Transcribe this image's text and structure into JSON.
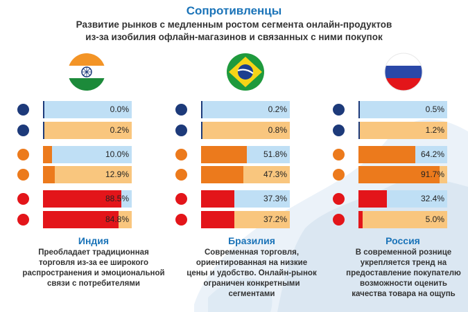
{
  "title": "Сопротивленцы",
  "subtitle_line1": "Развитие рынков с медленным ростом сегмента онлайн-продуктов",
  "subtitle_line2": "из-за изобилия офлайн-магазинов и связанных с ними покупок",
  "colors": {
    "dark_blue": "#1d3a7a",
    "orange": "#ec7a1c",
    "red": "#e3151a",
    "light_blue_bg": "#bfdff5",
    "light_orange_bg": "#f9c67e",
    "title_blue": "#1a73b8"
  },
  "chart_data": {
    "type": "bar",
    "orientation": "horizontal",
    "title": "Сопротивленцы",
    "unit": "%",
    "xlim": [
      0,
      100
    ],
    "rows": [
      {
        "group": "dark_blue",
        "value_color": "dark_blue",
        "bg_color": "light_blue_bg"
      },
      {
        "group": "dark_blue",
        "value_color": "dark_blue",
        "bg_color": "light_orange_bg"
      },
      {
        "group": "orange",
        "value_color": "orange",
        "bg_color": "light_blue_bg"
      },
      {
        "group": "orange",
        "value_color": "orange",
        "bg_color": "light_orange_bg"
      },
      {
        "group": "red",
        "value_color": "red",
        "bg_color": "light_blue_bg"
      },
      {
        "group": "red",
        "value_color": "red",
        "bg_color": "light_orange_bg"
      }
    ],
    "countries": [
      {
        "name": "Индия",
        "flag": "india-flag",
        "values": [
          0.0,
          0.2,
          10.0,
          12.9,
          88.5,
          84.8
        ],
        "labels": [
          "0.0%",
          "0.2%",
          "10.0%",
          "12.9%",
          "88.5%",
          "84.8%"
        ],
        "description": [
          "Преобладает традиционная",
          "торговля из-за ее широкого",
          "распространения и эмоциональной",
          "связи с потребителями"
        ]
      },
      {
        "name": "Бразилия",
        "flag": "brazil-flag",
        "values": [
          0.2,
          0.8,
          51.8,
          47.3,
          37.3,
          37.2
        ],
        "labels": [
          "0.2%",
          "0.8%",
          "51.8%",
          "47.3%",
          "37.3%",
          "37.2%"
        ],
        "description": [
          "Современная торговля,",
          "ориентированная на низкие",
          "цены и удобство. Онлайн-рынок",
          "ограничен конкретными",
          "сегментами"
        ]
      },
      {
        "name": "Россия",
        "flag": "russia-flag",
        "values": [
          0.5,
          1.2,
          64.2,
          91.7,
          32.4,
          5.0
        ],
        "labels": [
          "0.5%",
          "1.2%",
          "64.2%",
          "91.7%",
          "32.4%",
          "5.0%"
        ],
        "description": [
          "В современной рознице",
          "укрепляется тренд на",
          "предоставление покупателю",
          "возможности оценить",
          "качества товара на ощупь"
        ]
      }
    ]
  }
}
